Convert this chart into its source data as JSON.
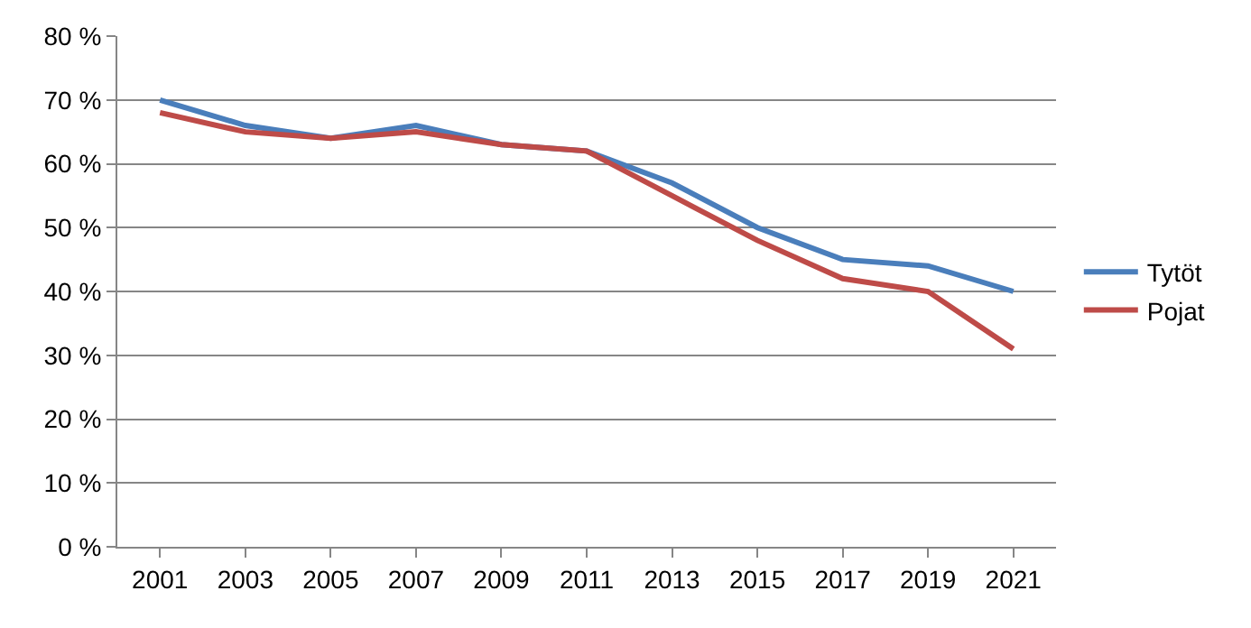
{
  "chart_data": {
    "type": "line",
    "categories": [
      "2001",
      "2003",
      "2005",
      "2007",
      "2009",
      "2011",
      "2013",
      "2015",
      "2017",
      "2019",
      "2021"
    ],
    "series": [
      {
        "name": "Tytöt",
        "color": "#4a7ebb",
        "values": [
          70,
          66,
          64,
          66,
          63,
          62,
          57,
          50,
          45,
          44,
          40
        ]
      },
      {
        "name": "Pojat",
        "color": "#be4b48",
        "values": [
          68,
          65,
          64,
          65,
          63,
          62,
          55,
          48,
          42,
          40,
          31
        ]
      }
    ],
    "ylim": [
      0,
      80
    ],
    "yticks": [
      {
        "value": 0,
        "label": "0 %"
      },
      {
        "value": 10,
        "label": "10 %"
      },
      {
        "value": 20,
        "label": "20 %"
      },
      {
        "value": 30,
        "label": "30 %"
      },
      {
        "value": 40,
        "label": "40 %"
      },
      {
        "value": 50,
        "label": "50 %"
      },
      {
        "value": 60,
        "label": "60 %"
      },
      {
        "value": 70,
        "label": "70 %"
      },
      {
        "value": 80,
        "label": "80 %"
      }
    ],
    "grid": "y",
    "legend": "right",
    "marker": "none",
    "line_style": "solid"
  }
}
